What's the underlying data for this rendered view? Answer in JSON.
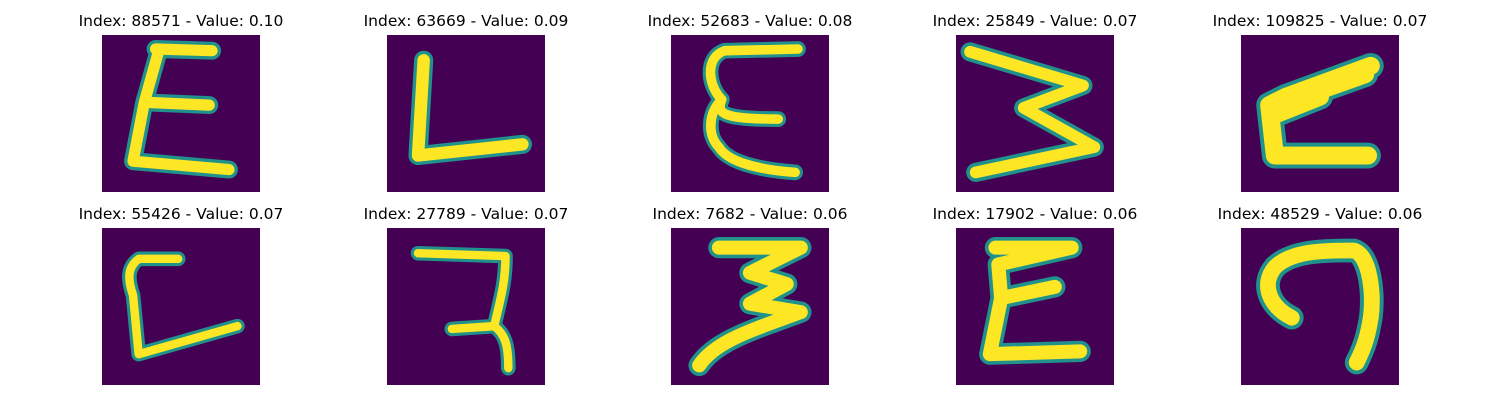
{
  "colors": {
    "background": "#440154",
    "mid_dark": "#31688e",
    "mid": "#21918c",
    "mid_light": "#5ec962",
    "foreground": "#fde725"
  },
  "panels": [
    {
      "title": "Index: 88571 - Value: 0.10"
    },
    {
      "title": "Index: 63669 - Value: 0.09"
    },
    {
      "title": "Index: 52683 - Value: 0.08"
    },
    {
      "title": "Index: 25849 - Value: 0.07"
    },
    {
      "title": "Index: 109825 - Value: 0.07"
    },
    {
      "title": "Index: 55426 - Value: 0.07"
    },
    {
      "title": "Index: 27789 - Value: 0.07"
    },
    {
      "title": "Index: 7682 - Value: 0.06"
    },
    {
      "title": "Index: 17902 - Value: 0.06"
    },
    {
      "title": "Index: 48529 - Value: 0.06"
    }
  ]
}
